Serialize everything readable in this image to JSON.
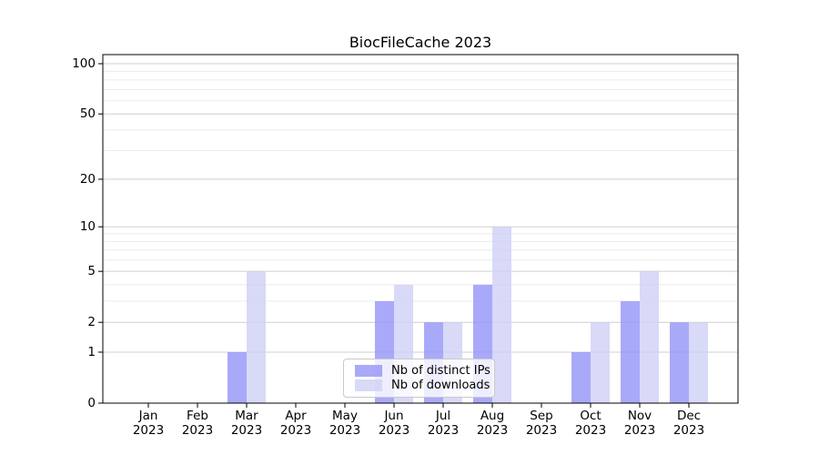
{
  "figure": {
    "background": "#ffffff"
  },
  "chart_data": {
    "type": "bar",
    "title": "BiocFileCache 2023",
    "xlabel": "",
    "ylabel": "",
    "categories": [
      "Jan",
      "Feb",
      "Mar",
      "Apr",
      "May",
      "Jun",
      "Jul",
      "Aug",
      "Sep",
      "Oct",
      "Nov",
      "Dec"
    ],
    "year_label": "2023",
    "series": [
      {
        "name": "Nb of distinct IPs",
        "fill": "rgba(148,148,249,0.8)",
        "rendered_color": "#a9a9fa",
        "values": [
          0,
          0,
          1,
          0,
          0,
          3,
          2,
          4,
          0,
          1,
          3,
          2
        ]
      },
      {
        "name": "Nb of downloads",
        "fill": "rgba(208,208,246,0.8)",
        "rendered_color": "#d9d9f8",
        "values": [
          0,
          0,
          5,
          0,
          0,
          4,
          2,
          10,
          0,
          2,
          5,
          2
        ]
      }
    ],
    "y_axis": {
      "scale": "log1p",
      "tick_values": [
        0,
        1,
        2,
        5,
        10,
        20,
        50,
        100
      ],
      "tick_labels": [
        "0",
        "1",
        "2",
        "5",
        "10",
        "20",
        "50",
        "100"
      ],
      "minor_gridlines": [
        3,
        4,
        6,
        7,
        8,
        9,
        30,
        40,
        60,
        70,
        80,
        90
      ],
      "range_top": 113.3
    },
    "grid": true,
    "legend_position": "lower center",
    "colors": {
      "major_grid": "#cfcfcf",
      "minor_grid": "#ebebeb",
      "axis": "#000000",
      "text": "#000000"
    }
  }
}
